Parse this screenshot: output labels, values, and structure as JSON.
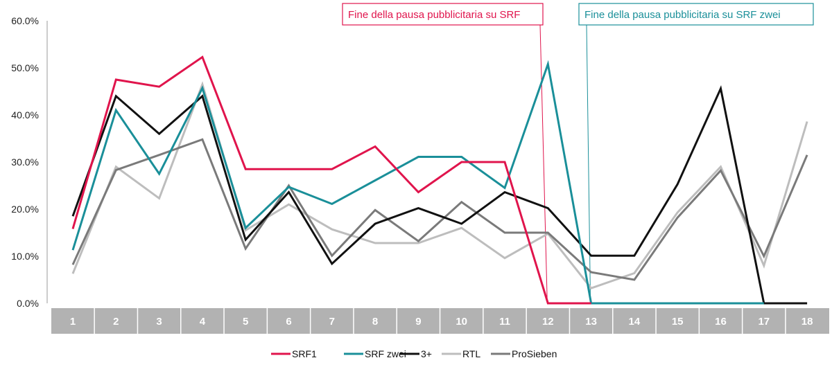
{
  "chart_data": {
    "type": "line",
    "categories": [
      "1",
      "2",
      "3",
      "4",
      "5",
      "6",
      "7",
      "8",
      "9",
      "10",
      "11",
      "12",
      "13",
      "14",
      "15",
      "16",
      "17",
      "18"
    ],
    "y_ticks": [
      "0.0%",
      "10.0%",
      "20.0%",
      "30.0%",
      "40.0%",
      "50.0%",
      "60.0%"
    ],
    "ylim": [
      0,
      60
    ],
    "grid": false,
    "legend_position": "bottom-center",
    "series": [
      {
        "name": "SRF1",
        "color": "#e0144c",
        "values": [
          15.8,
          47.5,
          46.0,
          52.3,
          28.5,
          28.5,
          28.5,
          33.3,
          23.6,
          30.0,
          30.0,
          0,
          0,
          null,
          null,
          null,
          null,
          null
        ]
      },
      {
        "name": "SRF zwei",
        "color": "#1a8f99",
        "values": [
          11.3,
          41.0,
          27.5,
          45.7,
          16.0,
          24.7,
          21.1,
          26.1,
          31.1,
          31.1,
          24.5,
          50.8,
          0,
          0,
          0,
          0,
          0,
          null
        ]
      },
      {
        "name": "3+",
        "color": "#111111",
        "values": [
          18.5,
          44.0,
          36.0,
          44.0,
          13.5,
          23.6,
          8.4,
          16.9,
          20.2,
          16.9,
          23.6,
          20.2,
          10.1,
          10.1,
          25.3,
          45.6,
          0,
          0
        ]
      },
      {
        "name": "RTL",
        "color": "#bdbdbd",
        "values": [
          6.3,
          29.0,
          22.3,
          46.5,
          15.5,
          21.0,
          15.7,
          12.8,
          12.8,
          16.0,
          9.6,
          14.8,
          3.2,
          6.4,
          19.3,
          29.0,
          8.0,
          38.6
        ]
      },
      {
        "name": "ProSieben",
        "color": "#7a7a7a",
        "values": [
          8.2,
          28.3,
          31.5,
          34.8,
          11.6,
          25.0,
          10.1,
          19.8,
          13.2,
          21.5,
          15.0,
          15.0,
          6.6,
          5.0,
          18.2,
          28.2,
          10.0,
          31.5
        ]
      }
    ],
    "annotations": [
      {
        "text": "Fine della pausa pubblicitaria su SRF",
        "color": "#e0144c",
        "category": "12"
      },
      {
        "text": "Fine della pausa pubblicitaria su SRF zwei",
        "color": "#1a8f99",
        "category": "13"
      }
    ]
  }
}
